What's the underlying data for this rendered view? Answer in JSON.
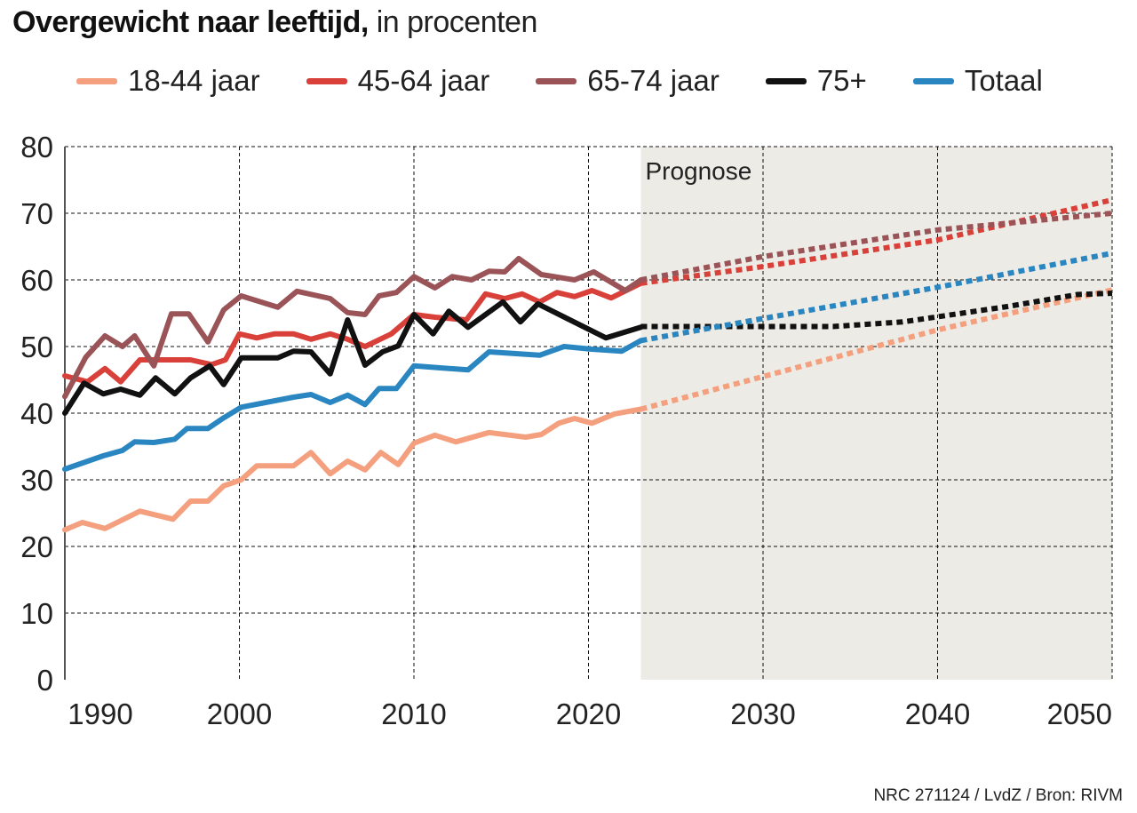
{
  "title": {
    "bold": "Overgewicht naar leeftijd,",
    "rest": " in procenten"
  },
  "footer": "NRC 271124 / LvdZ / Bron: RIVM",
  "chart_data": {
    "type": "line",
    "title": "Overgewicht naar leeftijd, in procenten",
    "xlim": [
      1990,
      2050
    ],
    "ylim": [
      0,
      80
    ],
    "yticks": [
      0,
      10,
      20,
      30,
      40,
      50,
      60,
      70,
      80
    ],
    "xticks": [
      1990,
      2000,
      2010,
      2020,
      2030,
      2040,
      2050
    ],
    "grid": true,
    "legend": "top",
    "annotation": {
      "label": "Prognose",
      "from": 2023,
      "to": 2050,
      "color": "#edebe5"
    },
    "series": [
      {
        "name": "18-44 jaar",
        "color": "#f4a07f",
        "x": [
          1990,
          1991,
          1992.3,
          1994.3,
          1996.2,
          1997.2,
          1998.2,
          1999.1,
          2000.1,
          2001,
          2003.1,
          2004.1,
          2005.2,
          2006.2,
          2007.2,
          2008.1,
          2009.1,
          2010,
          2011.2,
          2012.4,
          2014.3,
          2016.4,
          2017.3,
          2018.3,
          2019.2,
          2020.2,
          2021.5,
          2023
        ],
        "y": [
          22.5,
          23.6,
          22.7,
          25.3,
          24.1,
          26.8,
          26.8,
          29.1,
          30,
          32.1,
          32.1,
          34.1,
          30.9,
          32.8,
          31.5,
          34.1,
          32.3,
          35.5,
          36.7,
          35.7,
          37.1,
          36.4,
          36.8,
          38.5,
          39.2,
          38.5,
          39.9,
          40.6
        ],
        "forecast_x": [
          2023,
          2030,
          2040,
          2050
        ],
        "forecast_y": [
          40.6,
          45.5,
          52.5,
          58.5
        ]
      },
      {
        "name": "45-64 jaar",
        "color": "#d9403a",
        "x": [
          1990,
          1991.3,
          1992.3,
          1993.2,
          1994.3,
          1997.2,
          1998.4,
          1999.2,
          2000,
          2001,
          2002,
          2003.1,
          2004.1,
          2005.2,
          2006.2,
          2007.2,
          2008.7,
          2010,
          2011.2,
          2013,
          2014.1,
          2015.2,
          2016.2,
          2017.2,
          2018.2,
          2019.2,
          2020.2,
          2021.3,
          2023
        ],
        "y": [
          45.6,
          44.7,
          46.7,
          44.7,
          48,
          48,
          47.3,
          48,
          51.9,
          51.3,
          51.9,
          51.9,
          51.1,
          51.9,
          51.1,
          50,
          51.9,
          54.8,
          54.4,
          54,
          57.9,
          57.2,
          57.9,
          56.7,
          58.1,
          57.5,
          58.4,
          57.3,
          59.5
        ],
        "forecast_x": [
          2023,
          2030,
          2040,
          2050
        ],
        "forecast_y": [
          59.5,
          62,
          66,
          72
        ]
      },
      {
        "name": "65-74 jaar",
        "color": "#9a5457",
        "x": [
          1990,
          1991.2,
          1992.3,
          1993.3,
          1994,
          1995.1,
          1996.1,
          1997.1,
          1998.2,
          1999.1,
          2000.1,
          2002.2,
          2003.3,
          2005.2,
          2006.2,
          2007.2,
          2008,
          2009,
          2010,
          2011.2,
          2012.2,
          2013.3,
          2014.3,
          2015.2,
          2016,
          2017.3,
          2019.2,
          2020.3,
          2022.1,
          2023
        ],
        "y": [
          42.5,
          48.4,
          51.6,
          50,
          51.6,
          47.1,
          54.9,
          54.9,
          50.7,
          55.5,
          57.6,
          55.9,
          58.3,
          57.2,
          55.1,
          54.8,
          57.6,
          58.1,
          60.5,
          58.8,
          60.5,
          60,
          61.3,
          61.2,
          63.2,
          60.8,
          60,
          61.2,
          58.4,
          60
        ],
        "forecast_x": [
          2023,
          2030,
          2040,
          2050
        ],
        "forecast_y": [
          60,
          63.5,
          67.5,
          70
        ]
      },
      {
        "name": "75+",
        "color": "#111111",
        "x": [
          1990,
          1991.1,
          1992.2,
          1993.2,
          1994.3,
          1995.2,
          1996.3,
          1997.2,
          1998.3,
          1999.1,
          2000.1,
          2002.2,
          2003.1,
          2004.1,
          2005.2,
          2006.2,
          2007.2,
          2008.2,
          2009.1,
          2010,
          2011.1,
          2012,
          2013.1,
          2015.1,
          2016.1,
          2017.1,
          2021,
          2023
        ],
        "y": [
          40,
          44.5,
          42.9,
          43.6,
          42.7,
          45.3,
          42.9,
          45.3,
          47.1,
          44.3,
          48.3,
          48.3,
          49.3,
          49.2,
          45.9,
          54,
          47.2,
          49.2,
          50.1,
          54.8,
          51.9,
          55.3,
          52.9,
          56.7,
          53.7,
          56.4,
          51.3,
          52.9
        ],
        "forecast_x": [
          2023,
          2030,
          2034,
          2038,
          2044,
          2048,
          2050
        ],
        "forecast_y": [
          53,
          53,
          53,
          53.7,
          56,
          57.8,
          58
        ]
      },
      {
        "name": "Totaal",
        "color": "#2a86c1",
        "x": [
          1990,
          1992.2,
          1993.3,
          1994,
          1995.1,
          1996.3,
          1997,
          1998.2,
          1999.1,
          2000.1,
          2003.1,
          2004.1,
          2005.2,
          2006.2,
          2007.2,
          2008,
          2009,
          2010,
          2013.1,
          2014.3,
          2017.2,
          2018.6,
          2020.2,
          2021.9,
          2023
        ],
        "y": [
          31.6,
          33.6,
          34.4,
          35.7,
          35.6,
          36.1,
          37.7,
          37.7,
          39.3,
          40.9,
          42.4,
          42.8,
          41.6,
          42.7,
          41.3,
          43.7,
          43.7,
          47.1,
          46.5,
          49.2,
          48.7,
          50,
          49.6,
          49.3,
          50.9
        ],
        "forecast_x": [
          2023,
          2030,
          2040,
          2050
        ],
        "forecast_y": [
          50.9,
          54.2,
          58.9,
          64
        ]
      }
    ]
  }
}
